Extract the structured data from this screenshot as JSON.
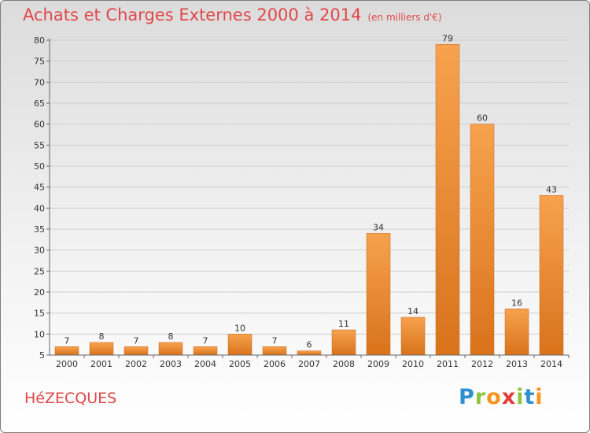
{
  "title": "Achats et Charges Externes 2000 à 2014",
  "subtitle": "(en milliers d'€)",
  "commune": "HéZECQUES",
  "logo": {
    "letters": [
      "P",
      "r",
      "o",
      "x",
      "i",
      "t",
      "i"
    ],
    "colors": [
      "#2f8fd0",
      "#8cc63f",
      "#f7941d",
      "#e23c3c",
      "#8cc63f",
      "#2f8fd0",
      "#f7941d"
    ]
  },
  "chart_data": {
    "type": "bar",
    "title": "Achats et Charges Externes 2000 à 2014",
    "subtitle": "(en milliers d'€)",
    "categories": [
      "2000",
      "2001",
      "2002",
      "2003",
      "2004",
      "2005",
      "2006",
      "2007",
      "2008",
      "2009",
      "2010",
      "2011",
      "2012",
      "2013",
      "2014"
    ],
    "values": [
      7,
      8,
      7,
      8,
      7,
      10,
      7,
      6,
      11,
      34,
      14,
      79,
      60,
      16,
      43
    ],
    "ylim": [
      5,
      80
    ],
    "yticks": [
      5,
      10,
      15,
      20,
      25,
      30,
      35,
      40,
      45,
      50,
      55,
      60,
      65,
      70,
      75,
      80
    ],
    "grid": true,
    "bar_color": "#e8822a"
  }
}
